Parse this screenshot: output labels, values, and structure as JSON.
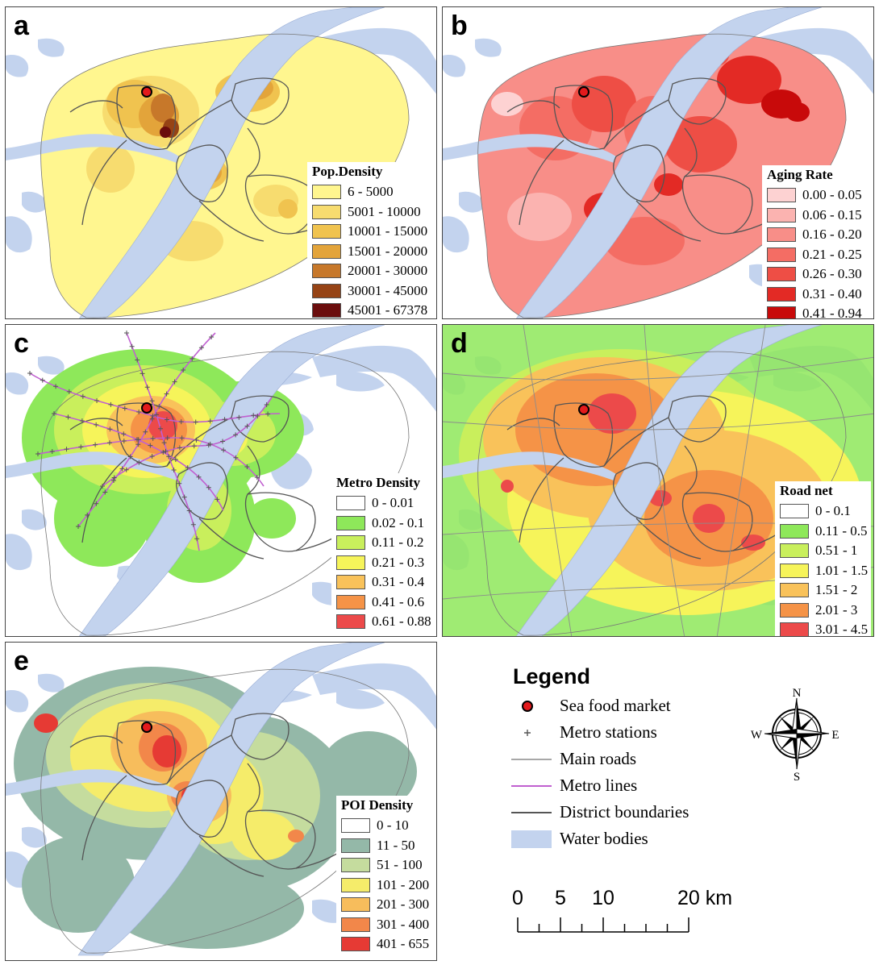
{
  "panels": [
    {
      "id": "a",
      "letter": "a",
      "legend_title": "Pop.Density",
      "classes": [
        {
          "label": "6 - 5000",
          "color": "#fff68f"
        },
        {
          "label": "5001 - 10000",
          "color": "#f7dc6f"
        },
        {
          "label": "10001 - 15000",
          "color": "#f0c34f"
        },
        {
          "label": "15001 - 20000",
          "color": "#e3a43a"
        },
        {
          "label": "20001 - 30000",
          "color": "#c7782a"
        },
        {
          "label": "30001 - 45000",
          "color": "#964315"
        },
        {
          "label": "45001 - 67378",
          "color": "#6b0d0d"
        }
      ]
    },
    {
      "id": "b",
      "letter": "b",
      "legend_title": "Aging Rate",
      "classes": [
        {
          "label": "0.00 - 0.05",
          "color": "#fdd2d2"
        },
        {
          "label": "0.06 - 0.15",
          "color": "#fbb3b0"
        },
        {
          "label": "0.16 - 0.20",
          "color": "#f88e88"
        },
        {
          "label": "0.21 - 0.25",
          "color": "#f46d64"
        },
        {
          "label": "0.26 - 0.30",
          "color": "#ee4e45"
        },
        {
          "label": "0.31 - 0.40",
          "color": "#e32a25"
        },
        {
          "label": "0.41 - 0.94",
          "color": "#c80a0a"
        }
      ]
    },
    {
      "id": "c",
      "letter": "c",
      "legend_title": "Metro Density",
      "classes": [
        {
          "label": "0 - 0.01",
          "color": "#ffffff"
        },
        {
          "label": "0.02 - 0.1",
          "color": "#8ee85a"
        },
        {
          "label": "0.11 - 0.2",
          "color": "#c9ef5c"
        },
        {
          "label": "0.21 - 0.3",
          "color": "#f6f45a"
        },
        {
          "label": "0.31 - 0.4",
          "color": "#f9c25a"
        },
        {
          "label": "0.41 - 0.6",
          "color": "#f59347"
        },
        {
          "label": "0.61 - 0.88",
          "color": "#ec4a4a"
        }
      ]
    },
    {
      "id": "d",
      "letter": "d",
      "legend_title": "Road net",
      "classes": [
        {
          "label": "0 - 0.1",
          "color": "#ffffff"
        },
        {
          "label": "0.11 - 0.5",
          "color": "#8ee85a"
        },
        {
          "label": "0.51 - 1",
          "color": "#c9ef5c"
        },
        {
          "label": "1.01 - 1.5",
          "color": "#f6f45a"
        },
        {
          "label": "1.51 - 2",
          "color": "#f9c25a"
        },
        {
          "label": "2.01 - 3",
          "color": "#f59347"
        },
        {
          "label": "3.01 - 4.5",
          "color": "#ec4a4a"
        }
      ]
    },
    {
      "id": "e",
      "letter": "e",
      "legend_title": "POI Density",
      "classes": [
        {
          "label": "0 - 10",
          "color": "#ffffff"
        },
        {
          "label": "11 - 50",
          "color": "#94b8a8"
        },
        {
          "label": "51 - 100",
          "color": "#c5dc9e"
        },
        {
          "label": "101 - 200",
          "color": "#f5ec6a"
        },
        {
          "label": "201 - 300",
          "color": "#f7bd5c"
        },
        {
          "label": "301 - 400",
          "color": "#f2874a"
        },
        {
          "label": "401 - 655",
          "color": "#e63a34"
        }
      ]
    }
  ],
  "legend": {
    "title": "Legend",
    "items": [
      {
        "label": "Sea food market",
        "symbol": "market"
      },
      {
        "label": "Metro stations",
        "symbol": "station"
      },
      {
        "label": "Main roads",
        "symbol": "road"
      },
      {
        "label": "Metro lines",
        "symbol": "metro-line"
      },
      {
        "label": "District boundaries",
        "symbol": "district"
      },
      {
        "label": "Water bodies",
        "symbol": "water"
      }
    ]
  },
  "colors": {
    "water": "#c3d3ee",
    "market_fill": "#e31a1c",
    "metro_line": "#c060d0",
    "district": "#555555",
    "road": "#8c8c8c"
  },
  "scale_bar": {
    "ticks": [
      "0",
      "5",
      "10",
      "20 km"
    ],
    "km": [
      0,
      5,
      10,
      20
    ]
  },
  "compass": {
    "n": "N",
    "s": "S",
    "e": "E",
    "w": "W"
  }
}
